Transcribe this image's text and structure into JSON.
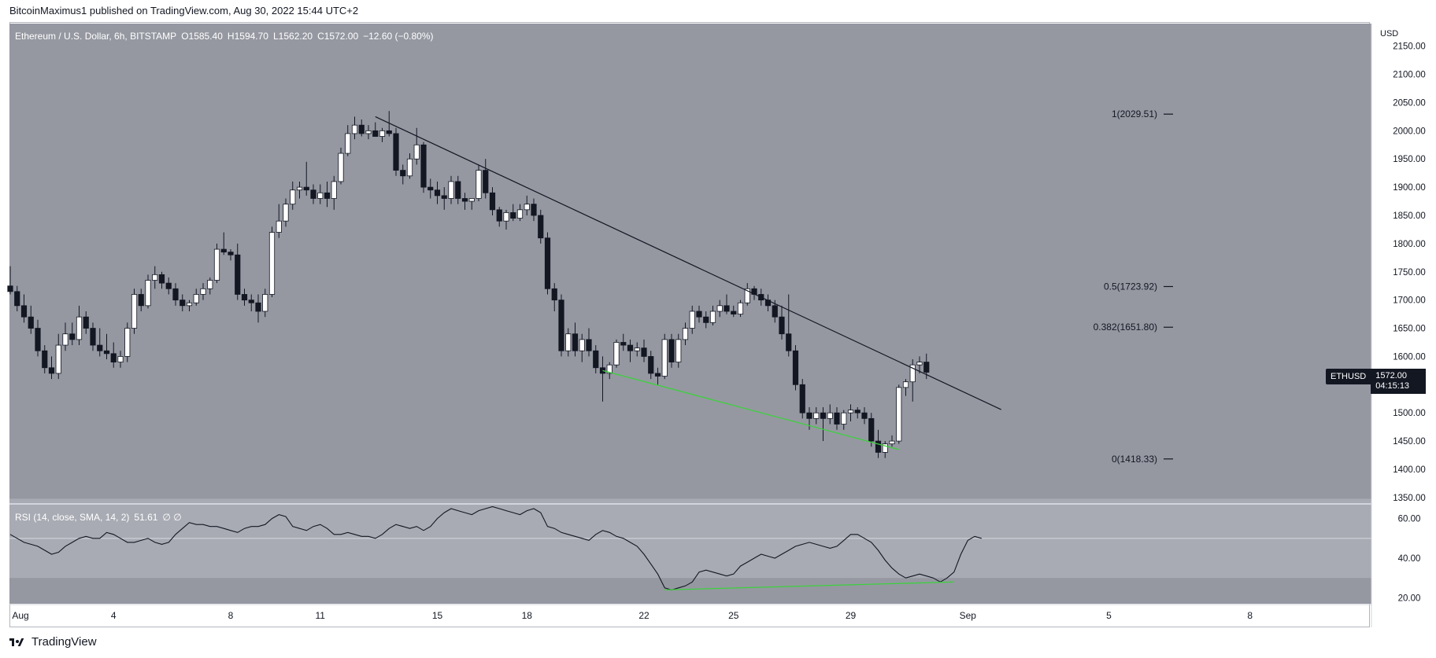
{
  "header": {
    "published": "BitcoinMaximus1 published on TradingView.com, Aug 30, 2022 15:44 UTC+2"
  },
  "legend": {
    "symbol": "Ethereum / U.S. Dollar, 6h, BITSTAMP",
    "o_label": "O",
    "o": "1585.40",
    "h_label": "H",
    "h": "1594.70",
    "l_label": "L",
    "l": "1562.20",
    "c_label": "C",
    "c": "1572.00",
    "change": "−12.60 (−0.80%)"
  },
  "rsi_legend": {
    "label": "RSI (14, close, SMA, 14, 2)",
    "value": "51.61",
    "extra": "∅ ∅"
  },
  "price_axis": {
    "currency": "USD",
    "ticks": [
      "2150.00",
      "2100.00",
      "2050.00",
      "2000.00",
      "1950.00",
      "1900.00",
      "1850.00",
      "1800.00",
      "1750.00",
      "1700.00",
      "1650.00",
      "1600.00",
      "1550.00",
      "1500.00",
      "1450.00",
      "1400.00",
      "1350.00"
    ]
  },
  "rsi_axis": {
    "ticks": [
      "60.00",
      "40.00",
      "20.00"
    ]
  },
  "time_axis": {
    "ticks": [
      "Aug",
      "4",
      "8",
      "11",
      "15",
      "18",
      "22",
      "25",
      "29",
      "Sep",
      "5",
      "8"
    ]
  },
  "symbol_tag": {
    "label": "ETHUSD",
    "price": "1572.00",
    "countdown": "04:15:13"
  },
  "fib_labels": [
    {
      "text": "1(2029.51)",
      "price": 2029.51
    },
    {
      "text": "0.5(1723.92)",
      "price": 1723.92
    },
    {
      "text": "0.382(1651.80)",
      "price": 1651.8
    },
    {
      "text": "0(1418.33)",
      "price": 1418.33
    }
  ],
  "footer": {
    "brand": "TradingView"
  },
  "colors": {
    "background": "#ffffff",
    "pane": "#9598a1",
    "rsi_band": "#a8abb3",
    "bull": "#ffffff",
    "bear": "#131722",
    "trendline": "#131722",
    "divergence": "#3cd13c",
    "tag_bg": "#131722"
  },
  "chart_data": {
    "type": "candlestick",
    "title": "Ethereum / U.S. Dollar, 6h, BITSTAMP",
    "ylabel": "USD",
    "ylim": [
      1340,
      2190
    ],
    "x_ticks": [
      "Aug",
      "4",
      "8",
      "11",
      "15",
      "18",
      "22",
      "25",
      "29",
      "Sep",
      "5",
      "8"
    ],
    "candles": [
      [
        1725,
        1760,
        1710,
        1715
      ],
      [
        1715,
        1725,
        1680,
        1690
      ],
      [
        1690,
        1710,
        1660,
        1670
      ],
      [
        1670,
        1690,
        1640,
        1650
      ],
      [
        1650,
        1665,
        1600,
        1610
      ],
      [
        1610,
        1620,
        1570,
        1580
      ],
      [
        1580,
        1600,
        1560,
        1570
      ],
      [
        1570,
        1640,
        1560,
        1620
      ],
      [
        1620,
        1660,
        1610,
        1640
      ],
      [
        1640,
        1660,
        1620,
        1630
      ],
      [
        1630,
        1690,
        1620,
        1670
      ],
      [
        1670,
        1680,
        1640,
        1650
      ],
      [
        1650,
        1660,
        1610,
        1620
      ],
      [
        1620,
        1650,
        1600,
        1610
      ],
      [
        1610,
        1640,
        1595,
        1605
      ],
      [
        1605,
        1625,
        1580,
        1590
      ],
      [
        1590,
        1610,
        1580,
        1600
      ],
      [
        1600,
        1660,
        1590,
        1650
      ],
      [
        1650,
        1720,
        1640,
        1710
      ],
      [
        1710,
        1720,
        1680,
        1690
      ],
      [
        1690,
        1745,
        1685,
        1735
      ],
      [
        1735,
        1760,
        1720,
        1745
      ],
      [
        1745,
        1750,
        1720,
        1730
      ],
      [
        1730,
        1740,
        1710,
        1720
      ],
      [
        1720,
        1730,
        1690,
        1700
      ],
      [
        1700,
        1710,
        1680,
        1690
      ],
      [
        1690,
        1700,
        1680,
        1695
      ],
      [
        1695,
        1720,
        1690,
        1710
      ],
      [
        1710,
        1730,
        1700,
        1720
      ],
      [
        1720,
        1740,
        1710,
        1735
      ],
      [
        1735,
        1800,
        1730,
        1790
      ],
      [
        1790,
        1820,
        1780,
        1785
      ],
      [
        1785,
        1790,
        1770,
        1780
      ],
      [
        1780,
        1800,
        1700,
        1710
      ],
      [
        1710,
        1720,
        1690,
        1700
      ],
      [
        1700,
        1710,
        1680,
        1695
      ],
      [
        1695,
        1710,
        1660,
        1680
      ],
      [
        1680,
        1720,
        1670,
        1710
      ],
      [
        1710,
        1830,
        1705,
        1820
      ],
      [
        1820,
        1870,
        1810,
        1840
      ],
      [
        1840,
        1880,
        1830,
        1870
      ],
      [
        1870,
        1910,
        1860,
        1895
      ],
      [
        1895,
        1910,
        1880,
        1900
      ],
      [
        1900,
        1945,
        1885,
        1895
      ],
      [
        1895,
        1905,
        1870,
        1880
      ],
      [
        1880,
        1905,
        1870,
        1890
      ],
      [
        1890,
        1910,
        1865,
        1880
      ],
      [
        1880,
        1920,
        1860,
        1910
      ],
      [
        1910,
        1970,
        1905,
        1960
      ],
      [
        1960,
        2010,
        1955,
        1995
      ],
      [
        1995,
        2025,
        1985,
        2010
      ],
      [
        2010,
        2020,
        1990,
        1995
      ],
      [
        1995,
        2010,
        1985,
        2000
      ],
      [
        2000,
        2015,
        1990,
        1990
      ],
      [
        1990,
        2005,
        1980,
        2000
      ],
      [
        2000,
        2035,
        1990,
        1995
      ],
      [
        1995,
        2005,
        1920,
        1930
      ],
      [
        1930,
        1940,
        1905,
        1920
      ],
      [
        1920,
        1960,
        1915,
        1950
      ],
      [
        1950,
        2005,
        1940,
        1975
      ],
      [
        1975,
        1980,
        1890,
        1900
      ],
      [
        1900,
        1915,
        1880,
        1895
      ],
      [
        1895,
        1910,
        1870,
        1885
      ],
      [
        1885,
        1900,
        1860,
        1880
      ],
      [
        1880,
        1920,
        1870,
        1910
      ],
      [
        1910,
        1920,
        1870,
        1880
      ],
      [
        1880,
        1890,
        1860,
        1875
      ],
      [
        1875,
        1880,
        1860,
        1880
      ],
      [
        1880,
        1940,
        1875,
        1930
      ],
      [
        1930,
        1950,
        1880,
        1890
      ],
      [
        1890,
        1900,
        1850,
        1860
      ],
      [
        1860,
        1865,
        1830,
        1840
      ],
      [
        1840,
        1860,
        1825,
        1855
      ],
      [
        1855,
        1870,
        1840,
        1845
      ],
      [
        1845,
        1870,
        1840,
        1860
      ],
      [
        1860,
        1885,
        1850,
        1870
      ],
      [
        1870,
        1880,
        1840,
        1850
      ],
      [
        1850,
        1860,
        1800,
        1810
      ],
      [
        1810,
        1820,
        1710,
        1720
      ],
      [
        1720,
        1730,
        1680,
        1700
      ],
      [
        1700,
        1710,
        1600,
        1610
      ],
      [
        1610,
        1650,
        1600,
        1640
      ],
      [
        1640,
        1660,
        1600,
        1610
      ],
      [
        1610,
        1640,
        1590,
        1630
      ],
      [
        1630,
        1650,
        1600,
        1610
      ],
      [
        1610,
        1620,
        1570,
        1580
      ],
      [
        1580,
        1600,
        1520,
        1570
      ],
      [
        1570,
        1590,
        1560,
        1585
      ],
      [
        1585,
        1630,
        1580,
        1625
      ],
      [
        1625,
        1640,
        1610,
        1620
      ],
      [
        1620,
        1630,
        1590,
        1610
      ],
      [
        1610,
        1625,
        1600,
        1615
      ],
      [
        1615,
        1630,
        1590,
        1600
      ],
      [
        1600,
        1610,
        1560,
        1570
      ],
      [
        1570,
        1580,
        1550,
        1565
      ],
      [
        1565,
        1640,
        1560,
        1630
      ],
      [
        1630,
        1640,
        1580,
        1590
      ],
      [
        1590,
        1640,
        1580,
        1630
      ],
      [
        1630,
        1660,
        1620,
        1650
      ],
      [
        1650,
        1690,
        1640,
        1680
      ],
      [
        1680,
        1690,
        1660,
        1670
      ],
      [
        1670,
        1680,
        1650,
        1660
      ],
      [
        1660,
        1690,
        1655,
        1680
      ],
      [
        1680,
        1700,
        1670,
        1690
      ],
      [
        1690,
        1710,
        1675,
        1680
      ],
      [
        1680,
        1690,
        1670,
        1675
      ],
      [
        1675,
        1700,
        1670,
        1695
      ],
      [
        1695,
        1730,
        1690,
        1720
      ],
      [
        1720,
        1725,
        1700,
        1710
      ],
      [
        1710,
        1720,
        1690,
        1700
      ],
      [
        1700,
        1710,
        1680,
        1690
      ],
      [
        1690,
        1700,
        1660,
        1670
      ],
      [
        1670,
        1690,
        1630,
        1640
      ],
      [
        1640,
        1710,
        1600,
        1610
      ],
      [
        1610,
        1620,
        1540,
        1550
      ],
      [
        1550,
        1560,
        1490,
        1500
      ],
      [
        1500,
        1510,
        1470,
        1490
      ],
      [
        1490,
        1510,
        1480,
        1500
      ],
      [
        1500,
        1510,
        1450,
        1490
      ],
      [
        1490,
        1515,
        1480,
        1500
      ],
      [
        1500,
        1510,
        1470,
        1480
      ],
      [
        1480,
        1505,
        1470,
        1500
      ],
      [
        1500,
        1515,
        1485,
        1505
      ],
      [
        1505,
        1510,
        1490,
        1500
      ],
      [
        1500,
        1510,
        1480,
        1490
      ],
      [
        1490,
        1500,
        1440,
        1450
      ],
      [
        1450,
        1470,
        1420,
        1430
      ],
      [
        1430,
        1450,
        1420,
        1445
      ],
      [
        1445,
        1460,
        1440,
        1450
      ],
      [
        1450,
        1550,
        1445,
        1545
      ],
      [
        1545,
        1560,
        1530,
        1555
      ],
      [
        1555,
        1595,
        1520,
        1585
      ],
      [
        1585,
        1600,
        1570,
        1590
      ],
      [
        1590,
        1605,
        1560,
        1572
      ]
    ],
    "trendline": {
      "from": {
        "index": 53,
        "price": 2025
      },
      "to": {
        "index": 137,
        "price": 1545
      }
    },
    "divergence_price": {
      "from": {
        "index": 86,
        "price": 1575
      },
      "to": {
        "index": 129,
        "price": 1435
      }
    },
    "rsi": {
      "ylim": [
        17,
        67
      ],
      "overbought": 70,
      "middle": 50,
      "oversold": 30,
      "values": [
        52,
        50,
        48,
        47,
        46,
        44,
        42,
        43,
        46,
        48,
        50,
        51,
        50,
        50,
        53,
        52,
        50,
        48,
        48,
        49,
        50,
        48,
        47,
        48,
        52,
        55,
        58,
        57,
        57,
        56,
        56,
        55,
        54,
        53,
        55,
        56,
        56,
        57,
        60,
        62,
        61,
        56,
        55,
        54,
        56,
        57,
        55,
        52,
        52,
        53,
        52,
        51,
        51,
        50,
        52,
        55,
        57,
        56,
        55,
        56,
        54,
        56,
        60,
        63,
        65,
        64,
        63,
        62,
        64,
        65,
        66,
        65,
        64,
        63,
        62,
        64,
        65,
        63,
        56,
        55,
        53,
        52,
        51,
        50,
        49,
        52,
        54,
        53,
        51,
        50,
        48,
        46,
        42,
        37,
        32,
        25,
        24,
        25,
        26,
        28,
        33,
        34,
        33,
        32,
        31,
        32,
        36,
        38,
        40,
        42,
        41,
        40,
        42,
        44,
        46,
        47,
        48,
        47,
        46,
        45,
        46,
        49,
        52,
        52,
        50,
        48,
        44,
        39,
        35,
        32,
        30,
        31,
        32,
        31,
        30,
        28,
        30,
        33,
        42,
        49,
        51,
        50
      ],
      "divergence": {
        "from": {
          "index": 95,
          "value": 24
        },
        "to": {
          "index": 137,
          "value": 28
        }
      }
    }
  }
}
